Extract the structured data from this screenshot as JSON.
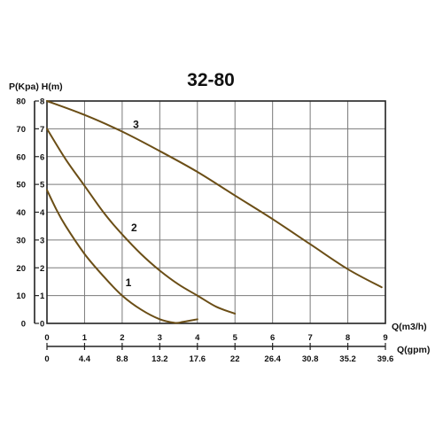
{
  "chart_data": {
    "type": "line",
    "title": "32-80",
    "ylabel_left": "P(Kpa) H(m)",
    "xlabel_primary": "Q(m3/h)",
    "xlabel_secondary": "Q(gpm)",
    "xlim": [
      0,
      9
    ],
    "ylim": [
      0,
      8
    ],
    "x_ticks": [
      "0",
      "1",
      "2",
      "3",
      "4",
      "5",
      "6",
      "7",
      "8",
      "9"
    ],
    "x_ticks_secondary": [
      "0",
      "4.4",
      "8.8",
      "13.2",
      "17.6",
      "22",
      "26.4",
      "30.8",
      "35.2",
      "39.6"
    ],
    "y_ticks_h": [
      "0",
      "1",
      "2",
      "3",
      "4",
      "5",
      "6",
      "7",
      "8"
    ],
    "y_ticks_p": [
      "0",
      "10",
      "20",
      "30",
      "40",
      "50",
      "60",
      "70",
      "80"
    ],
    "grid": true,
    "curve_color": "#6b4e16",
    "series": [
      {
        "name": "1",
        "x": [
          0,
          0.25,
          0.5,
          1.0,
          1.5,
          2.0,
          2.5,
          3.0,
          3.4,
          3.6,
          3.8,
          4.0
        ],
        "y": [
          4.8,
          4.1,
          3.5,
          2.5,
          1.7,
          1.0,
          0.5,
          0.15,
          0.02,
          0.05,
          0.1,
          0.15
        ]
      },
      {
        "name": "2",
        "x": [
          0,
          0.5,
          1.0,
          1.5,
          2.0,
          2.5,
          3.0,
          3.5,
          4.0,
          4.5,
          5.0
        ],
        "y": [
          7.0,
          5.9,
          4.95,
          4.0,
          3.2,
          2.5,
          1.9,
          1.4,
          1.0,
          0.6,
          0.35
        ]
      },
      {
        "name": "3",
        "x": [
          0,
          1,
          2,
          3,
          4,
          5,
          6,
          7,
          8,
          8.9
        ],
        "y": [
          8.0,
          7.5,
          6.9,
          6.2,
          5.45,
          4.6,
          3.75,
          2.85,
          1.95,
          1.3
        ]
      }
    ]
  }
}
